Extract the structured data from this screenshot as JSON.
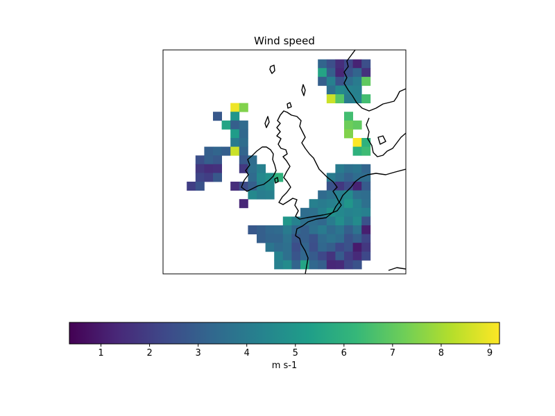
{
  "title": "Wind speed",
  "colorbar": {
    "label": "m s-1",
    "min": 0.35,
    "max": 9.2,
    "ticks": [
      "1",
      "2",
      "3",
      "4",
      "5",
      "6",
      "7",
      "8",
      "9"
    ],
    "colormap": "viridis",
    "colormap_stops": [
      "#440154",
      "#482878",
      "#3e4989",
      "#31688e",
      "#26828e",
      "#1f9e89",
      "#35b779",
      "#6ece58",
      "#b5de2b",
      "#fde725"
    ]
  },
  "map": {
    "region": "British Isles and North Sea",
    "coastline_color": "#000000",
    "grid_origin": "top-left",
    "cells": [
      [
        17,
        1,
        3.2
      ],
      [
        18,
        1,
        2.5
      ],
      [
        19,
        1,
        1.5
      ],
      [
        20,
        1,
        2.3
      ],
      [
        21,
        1,
        1.2
      ],
      [
        22,
        1,
        2.5
      ],
      [
        17,
        2,
        5.5
      ],
      [
        18,
        2,
        3.0
      ],
      [
        19,
        2,
        1.3
      ],
      [
        20,
        2,
        2.6
      ],
      [
        21,
        2,
        3.2
      ],
      [
        22,
        2,
        1.6
      ],
      [
        17,
        3,
        3.0
      ],
      [
        18,
        3,
        4.2
      ],
      [
        19,
        3,
        2.6
      ],
      [
        20,
        3,
        3.5
      ],
      [
        21,
        3,
        4.0
      ],
      [
        22,
        3,
        7.0
      ],
      [
        18,
        4,
        3.6
      ],
      [
        19,
        4,
        4.5
      ],
      [
        20,
        4,
        4.3
      ],
      [
        21,
        4,
        4.2
      ],
      [
        18,
        5,
        8.5
      ],
      [
        19,
        5,
        6.8
      ],
      [
        20,
        5,
        4.0
      ],
      [
        21,
        5,
        4.3
      ],
      [
        22,
        5,
        6.5
      ],
      [
        7,
        6,
        9.0
      ],
      [
        8,
        6,
        7.5
      ],
      [
        5,
        7,
        2.8
      ],
      [
        7,
        7,
        5.0
      ],
      [
        20,
        7,
        6.5
      ],
      [
        6,
        8,
        5.5
      ],
      [
        7,
        8,
        3.0
      ],
      [
        8,
        8,
        3.4
      ],
      [
        20,
        8,
        7.2
      ],
      [
        21,
        8,
        7.0
      ],
      [
        7,
        9,
        5.2
      ],
      [
        8,
        9,
        3.3
      ],
      [
        20,
        9,
        7.5
      ],
      [
        7,
        10,
        4.0
      ],
      [
        8,
        10,
        3.5
      ],
      [
        21,
        10,
        9.2
      ],
      [
        22,
        10,
        6.0
      ],
      [
        4,
        11,
        3.0
      ],
      [
        5,
        11,
        3.2
      ],
      [
        6,
        11,
        3.0
      ],
      [
        7,
        11,
        8.5
      ],
      [
        8,
        11,
        3.2
      ],
      [
        21,
        11,
        6.0
      ],
      [
        22,
        11,
        6.4
      ],
      [
        3,
        12,
        2.5
      ],
      [
        4,
        12,
        3.0
      ],
      [
        5,
        12,
        2.8
      ],
      [
        8,
        12,
        2.8
      ],
      [
        9,
        12,
        3.5
      ],
      [
        3,
        13,
        1.8
      ],
      [
        4,
        13,
        1.5
      ],
      [
        5,
        13,
        1.6
      ],
      [
        8,
        13,
        1.8
      ],
      [
        9,
        13,
        3.6
      ],
      [
        10,
        13,
        4.2
      ],
      [
        19,
        13,
        4.0
      ],
      [
        20,
        13,
        3.6
      ],
      [
        21,
        13,
        3.8
      ],
      [
        22,
        13,
        3.2
      ],
      [
        3,
        14,
        2.2
      ],
      [
        4,
        14,
        2.0
      ],
      [
        5,
        14,
        2.8
      ],
      [
        9,
        14,
        3.4
      ],
      [
        10,
        14,
        4.5
      ],
      [
        11,
        14,
        4.8
      ],
      [
        12,
        14,
        6.0
      ],
      [
        18,
        14,
        4.0
      ],
      [
        19,
        14,
        3.6
      ],
      [
        20,
        14,
        3.1
      ],
      [
        21,
        14,
        3.5
      ],
      [
        22,
        14,
        3.5
      ],
      [
        2,
        15,
        2.0
      ],
      [
        3,
        15,
        2.6
      ],
      [
        7,
        15,
        1.5
      ],
      [
        8,
        15,
        2.4
      ],
      [
        9,
        15,
        3.0
      ],
      [
        10,
        15,
        4.3
      ],
      [
        11,
        15,
        4.6
      ],
      [
        18,
        15,
        2.6
      ],
      [
        19,
        15,
        1.8
      ],
      [
        20,
        15,
        2.4
      ],
      [
        21,
        15,
        1.2
      ],
      [
        22,
        15,
        2.9
      ],
      [
        9,
        16,
        4.5
      ],
      [
        10,
        16,
        4.1
      ],
      [
        11,
        16,
        4.2
      ],
      [
        17,
        16,
        3.4
      ],
      [
        18,
        16,
        3.7
      ],
      [
        19,
        16,
        4.2
      ],
      [
        20,
        16,
        4.6
      ],
      [
        21,
        16,
        3.6
      ],
      [
        22,
        16,
        3.5
      ],
      [
        8,
        17,
        1.3
      ],
      [
        16,
        17,
        4.2
      ],
      [
        17,
        17,
        4.0
      ],
      [
        18,
        17,
        4.2
      ],
      [
        19,
        17,
        4.4
      ],
      [
        20,
        17,
        5.0
      ],
      [
        21,
        17,
        4.3
      ],
      [
        22,
        17,
        3.6
      ],
      [
        15,
        18,
        3.5
      ],
      [
        16,
        18,
        3.6
      ],
      [
        17,
        18,
        4.2
      ],
      [
        18,
        18,
        4.8
      ],
      [
        19,
        18,
        4.5
      ],
      [
        20,
        18,
        4.3
      ],
      [
        21,
        18,
        4.4
      ],
      [
        22,
        18,
        4.2
      ],
      [
        13,
        19,
        5.0
      ],
      [
        14,
        19,
        4.3
      ],
      [
        15,
        19,
        3.6
      ],
      [
        16,
        19,
        3.5
      ],
      [
        17,
        19,
        3.3
      ],
      [
        18,
        19,
        4.0
      ],
      [
        19,
        19,
        4.7
      ],
      [
        20,
        19,
        4.0
      ],
      [
        21,
        19,
        4.6
      ],
      [
        22,
        19,
        2.6
      ],
      [
        9,
        20,
        2.8
      ],
      [
        10,
        20,
        3.0
      ],
      [
        11,
        20,
        3.3
      ],
      [
        12,
        20,
        3.4
      ],
      [
        13,
        20,
        4.0
      ],
      [
        14,
        20,
        3.3
      ],
      [
        15,
        20,
        3.0
      ],
      [
        16,
        20,
        3.6
      ],
      [
        17,
        20,
        4.0
      ],
      [
        18,
        20,
        3.4
      ],
      [
        19,
        20,
        3.8
      ],
      [
        20,
        20,
        3.0
      ],
      [
        21,
        20,
        3.7
      ],
      [
        22,
        20,
        1.1
      ],
      [
        10,
        21,
        3.0
      ],
      [
        11,
        21,
        3.2
      ],
      [
        12,
        21,
        3.2
      ],
      [
        13,
        21,
        3.7
      ],
      [
        14,
        21,
        2.8
      ],
      [
        15,
        21,
        3.0
      ],
      [
        16,
        21,
        2.6
      ],
      [
        17,
        21,
        3.4
      ],
      [
        18,
        21,
        3.7
      ],
      [
        19,
        21,
        3.5
      ],
      [
        20,
        21,
        2.6
      ],
      [
        21,
        21,
        3.0
      ],
      [
        22,
        21,
        2.2
      ],
      [
        11,
        22,
        3.8
      ],
      [
        12,
        22,
        3.4
      ],
      [
        13,
        22,
        3.6
      ],
      [
        14,
        22,
        2.5
      ],
      [
        15,
        22,
        3.2
      ],
      [
        16,
        22,
        2.5
      ],
      [
        17,
        22,
        3.3
      ],
      [
        18,
        22,
        3.0
      ],
      [
        19,
        22,
        2.3
      ],
      [
        20,
        22,
        2.6
      ],
      [
        21,
        22,
        1.0
      ],
      [
        22,
        22,
        1.8
      ],
      [
        12,
        23,
        4.3
      ],
      [
        13,
        23,
        3.6
      ],
      [
        14,
        23,
        2.7
      ],
      [
        15,
        23,
        3.3
      ],
      [
        16,
        23,
        2.9
      ],
      [
        17,
        23,
        2.3
      ],
      [
        18,
        23,
        1.7
      ],
      [
        19,
        23,
        2.9
      ],
      [
        20,
        23,
        2.0
      ],
      [
        21,
        23,
        1.4
      ],
      [
        22,
        23,
        2.3
      ],
      [
        12,
        24,
        4.2
      ],
      [
        13,
        24,
        4.6
      ],
      [
        14,
        24,
        3.2
      ],
      [
        15,
        24,
        5.5
      ],
      [
        16,
        24,
        3.3
      ],
      [
        17,
        24,
        3.0
      ],
      [
        18,
        24,
        1.3
      ],
      [
        19,
        24,
        1.4
      ],
      [
        20,
        24,
        2.2
      ],
      [
        21,
        24,
        2.6
      ]
    ]
  }
}
